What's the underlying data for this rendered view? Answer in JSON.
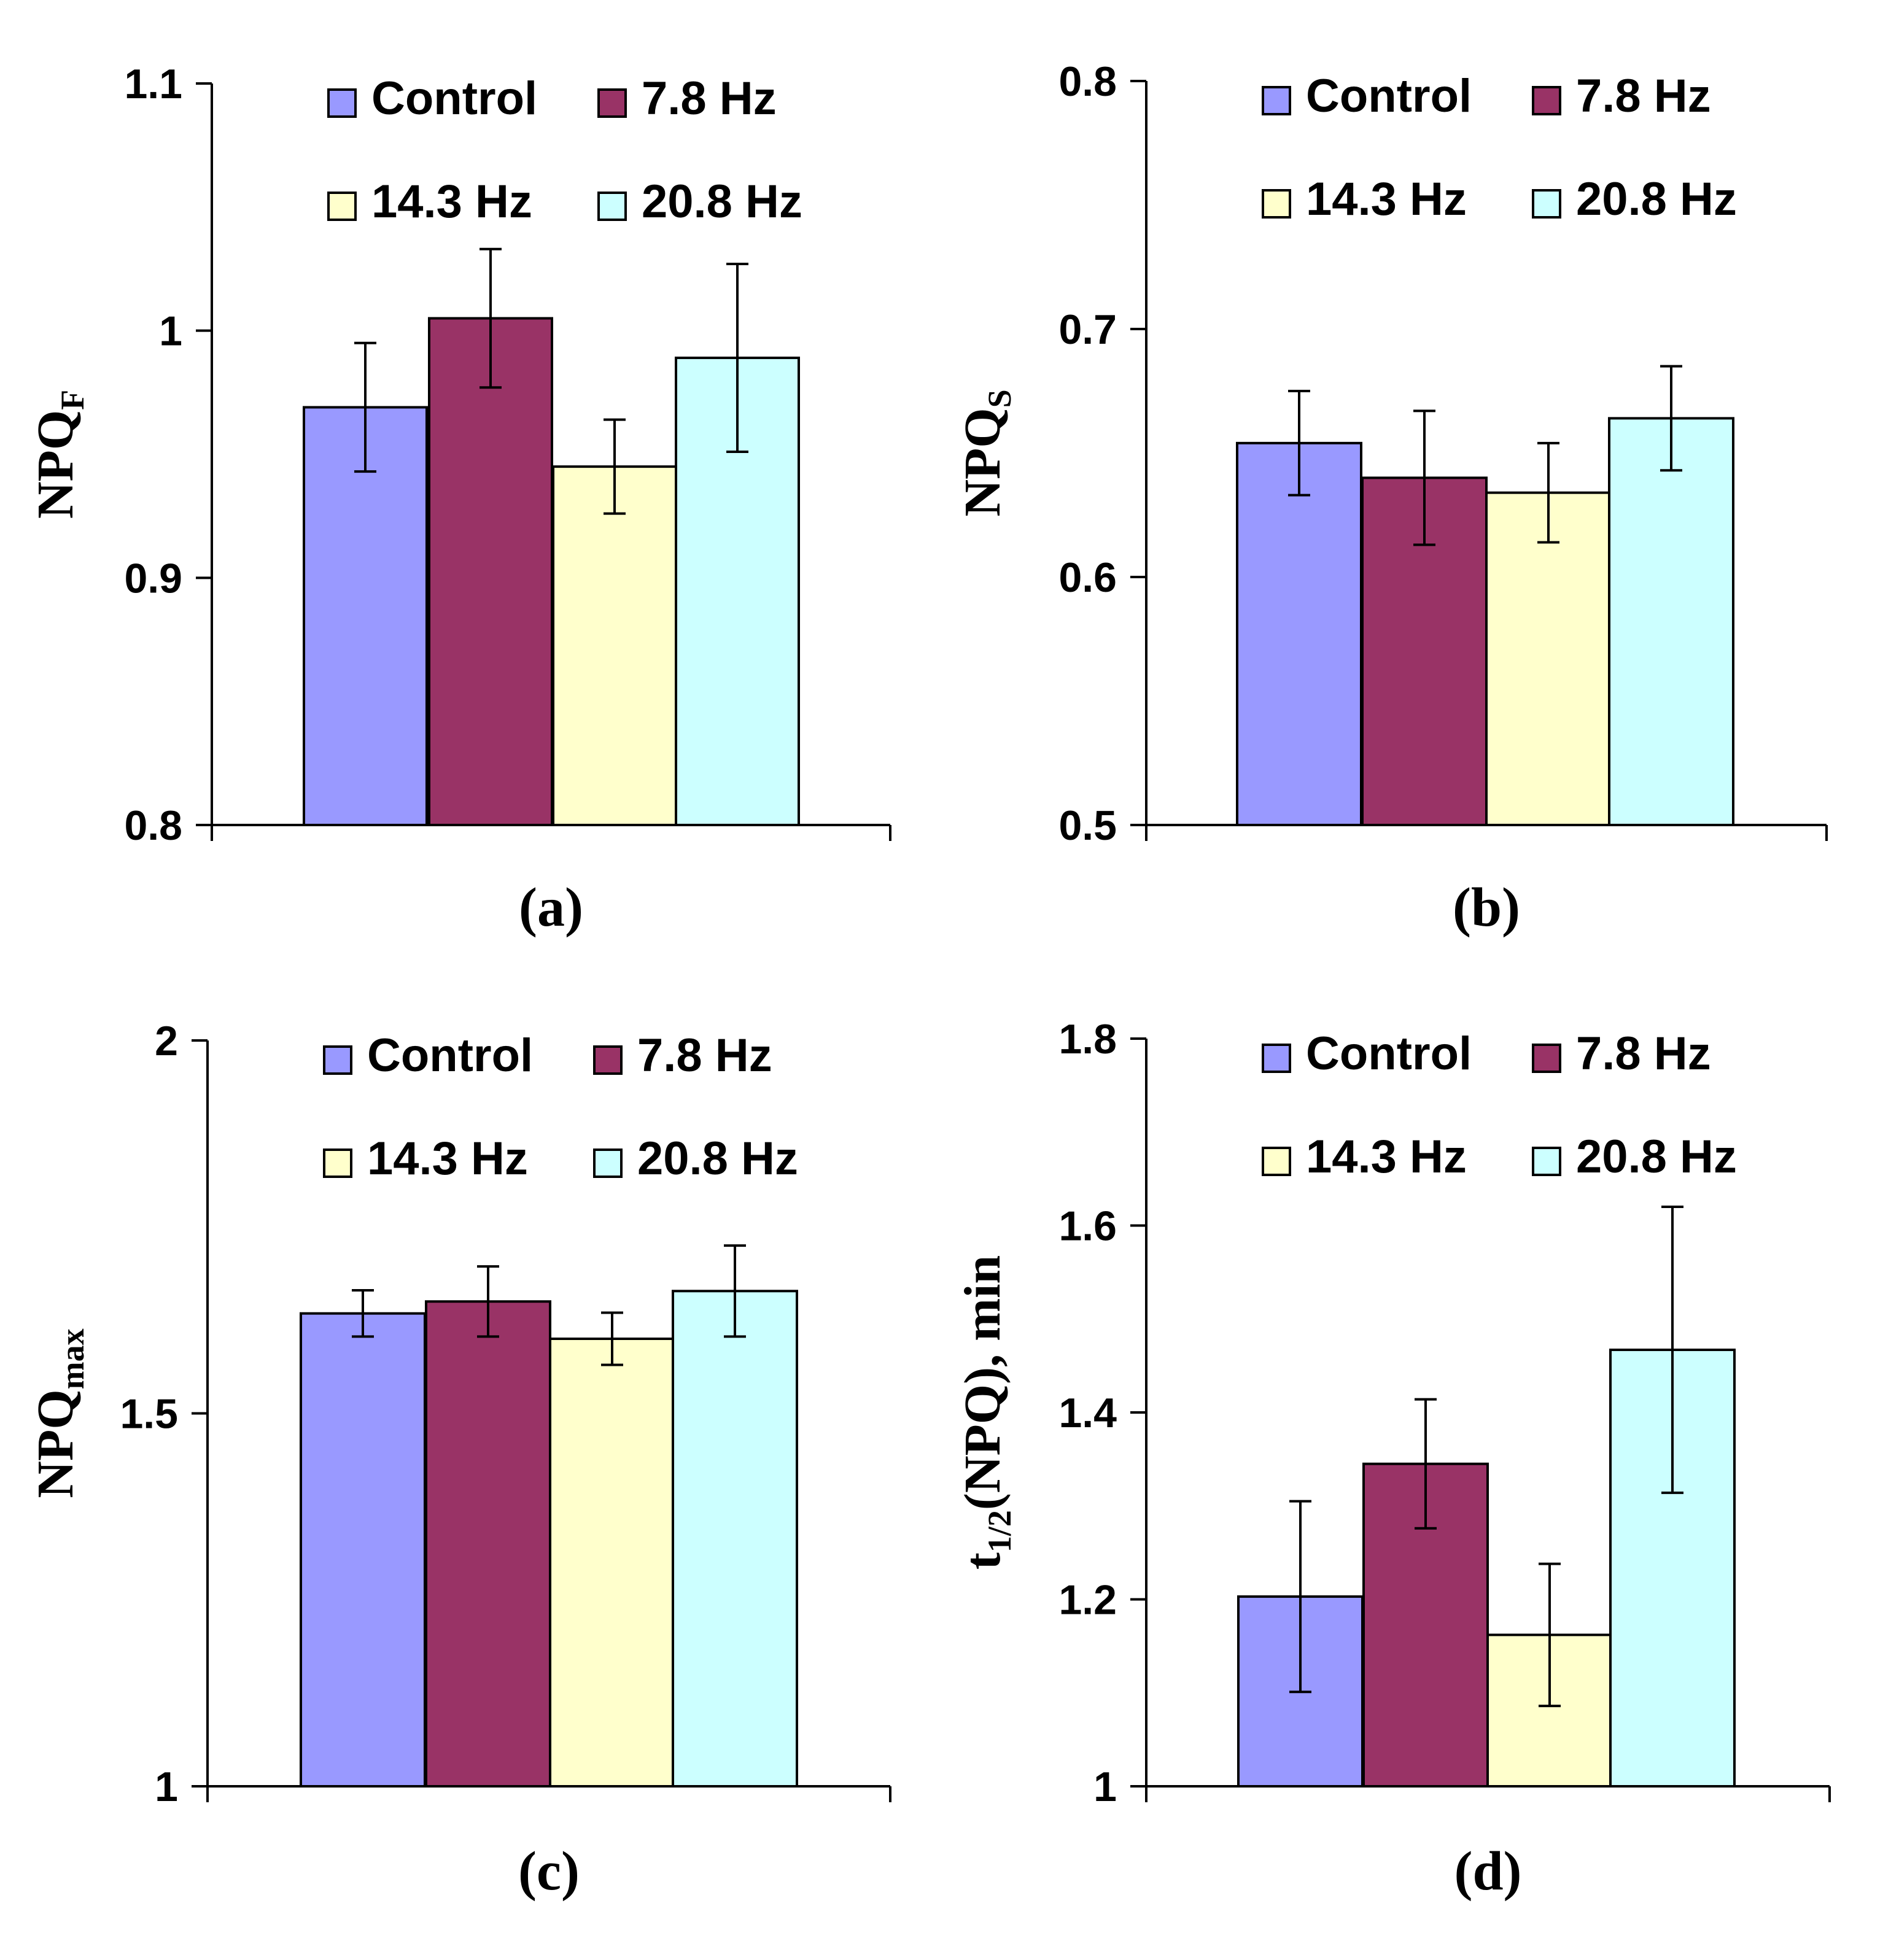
{
  "chart_data": [
    {
      "type": "bar",
      "panel_label": "(a)",
      "ylabel_main": "NPQ",
      "ylabel_sub": "F",
      "ylabel_suffix": "",
      "ylim": [
        0.8,
        1.1
      ],
      "yticks": [
        0.8,
        0.9,
        1.0,
        1.1
      ],
      "ytick_labels": [
        "0.8",
        "0.9",
        "1",
        "1.1"
      ],
      "series": [
        {
          "name": "Control",
          "value": 0.969,
          "error": 0.026
        },
        {
          "name": "7.8 Hz",
          "value": 1.005,
          "error": 0.028
        },
        {
          "name": "14.3 Hz",
          "value": 0.945,
          "error": 0.019
        },
        {
          "name": "20.8 Hz",
          "value": 0.989,
          "error": 0.038
        }
      ]
    },
    {
      "type": "bar",
      "panel_label": "(b)",
      "ylabel_main": "NPQ",
      "ylabel_sub": "S",
      "ylabel_suffix": "",
      "ylim": [
        0.5,
        0.8
      ],
      "yticks": [
        0.5,
        0.6,
        0.7,
        0.8
      ],
      "ytick_labels": [
        "0.5",
        "0.6",
        "0.7",
        "0.8"
      ],
      "series": [
        {
          "name": "Control",
          "value": 0.654,
          "error": 0.021
        },
        {
          "name": "7.8 Hz",
          "value": 0.64,
          "error": 0.027
        },
        {
          "name": "14.3 Hz",
          "value": 0.634,
          "error": 0.02
        },
        {
          "name": "20.8 Hz",
          "value": 0.664,
          "error": 0.021
        }
      ]
    },
    {
      "type": "bar",
      "panel_label": "(c)",
      "ylabel_main": "NPQ",
      "ylabel_sub": "max",
      "ylabel_suffix": "",
      "ylim": [
        1.0,
        2.0
      ],
      "yticks": [
        1.0,
        1.5,
        2.0
      ],
      "ytick_labels": [
        "1",
        "1.5",
        "2"
      ],
      "series": [
        {
          "name": "Control",
          "value": 1.634,
          "error": 0.031
        },
        {
          "name": "7.8 Hz",
          "value": 1.65,
          "error": 0.047
        },
        {
          "name": "14.3 Hz",
          "value": 1.6,
          "error": 0.035
        },
        {
          "name": "20.8 Hz",
          "value": 1.664,
          "error": 0.061
        }
      ]
    },
    {
      "type": "bar",
      "panel_label": "(d)",
      "ylabel_main": "t",
      "ylabel_sub": "1/2",
      "ylabel_suffix": "(NPQ), min",
      "ylim": [
        1.0,
        1.8
      ],
      "yticks": [
        1.0,
        1.2,
        1.4,
        1.6,
        1.8
      ],
      "ytick_labels": [
        "1",
        "1.2",
        "1.4",
        "1.6",
        "1.8"
      ],
      "series": [
        {
          "name": "Control",
          "value": 1.203,
          "error": 0.102
        },
        {
          "name": "7.8 Hz",
          "value": 1.345,
          "error": 0.069
        },
        {
          "name": "14.3 Hz",
          "value": 1.162,
          "error": 0.076
        },
        {
          "name": "20.8 Hz",
          "value": 1.467,
          "error": 0.153
        }
      ]
    }
  ],
  "legend": [
    {
      "name": "Control",
      "color": "#9999ff"
    },
    {
      "name": "7.8 Hz",
      "color": "#993366"
    },
    {
      "name": "14.3 Hz",
      "color": "#ffffcc"
    },
    {
      "name": "20.8 Hz",
      "color": "#ccffff"
    }
  ]
}
